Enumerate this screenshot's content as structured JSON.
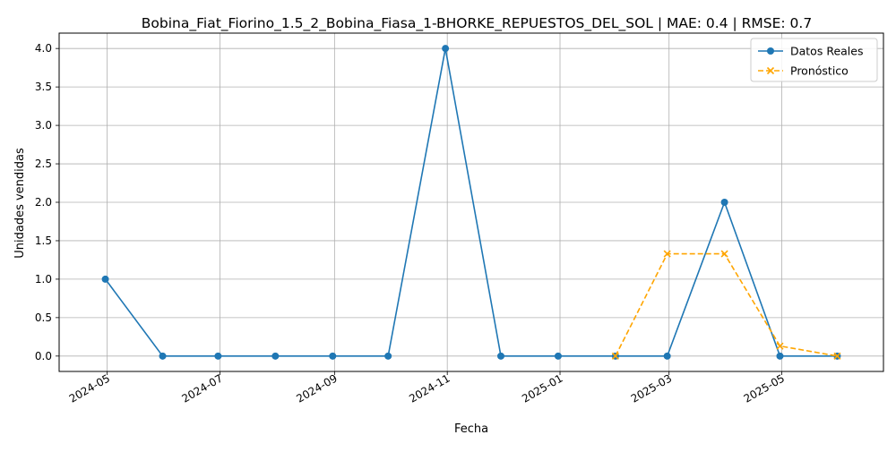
{
  "chart_data": {
    "type": "line",
    "title": "Bobina_Fiat_Fiorino_1.5_2_Bobina_Fiasa_1-BHORKE_REPUESTOS_DEL_SOL | MAE: 0.4 | RMSE: 0.7",
    "xlabel": "Fecha",
    "ylabel": "Unidades vendidas",
    "ylim": [
      -0.2,
      4.2
    ],
    "y_ticks": [
      "0.0",
      "0.5",
      "1.0",
      "1.5",
      "2.0",
      "2.5",
      "3.0",
      "3.5",
      "4.0"
    ],
    "x_ticks": [
      "2024-05",
      "2024-07",
      "2024-09",
      "2024-11",
      "2025-01",
      "2025-03",
      "2025-05"
    ],
    "grid": true,
    "legend_position": "top-right",
    "series": [
      {
        "name": "Datos Reales",
        "color": "#1f77b4",
        "style": "solid",
        "marker": "circle",
        "x": [
          "2024-04-30",
          "2024-05-31",
          "2024-06-30",
          "2024-07-31",
          "2024-08-31",
          "2024-09-30",
          "2024-10-31",
          "2024-11-30",
          "2024-12-31",
          "2025-01-31",
          "2025-02-28",
          "2025-03-31",
          "2025-04-30",
          "2025-05-31"
        ],
        "values": [
          1,
          0,
          0,
          0,
          0,
          0,
          4,
          0,
          0,
          0,
          0,
          2,
          0,
          0
        ]
      },
      {
        "name": "Pronóstico",
        "color": "#ffa500",
        "style": "dashed",
        "marker": "x",
        "x": [
          "2025-01-31",
          "2025-02-28",
          "2025-03-31",
          "2025-04-30",
          "2025-05-31"
        ],
        "values": [
          0,
          1.33,
          1.33,
          0.13,
          0
        ]
      }
    ]
  }
}
